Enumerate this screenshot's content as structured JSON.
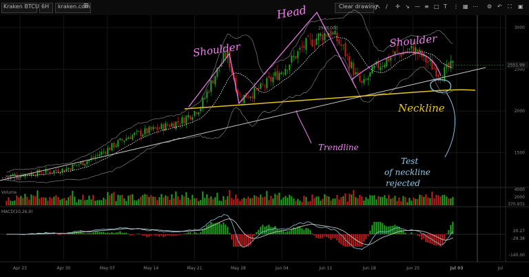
{
  "toolbar": {
    "symbol": "Kraken BTCUSD",
    "interval": "6H",
    "source": "kraken.com",
    "clear_drawing": "Clear drawing"
  },
  "colors": {
    "up": "#1fa61f",
    "down": "#c42020",
    "ma": "#ffffff",
    "bands": "#9c9c9c",
    "trendline": "#c8c8c8",
    "neckline": "#e6c61a",
    "pattern_marker": "#f07ff0",
    "note_marker": "#8ec7e6",
    "macd_line": "#8fc7df",
    "signal_line": "#d8d8d8"
  },
  "annotations": {
    "left_shoulder": "Shoulder",
    "head": "Head",
    "right_shoulder": "Shoulder",
    "neckline": "Neckline",
    "trendline": "Trendline",
    "test_line1": "Test",
    "test_line2": "of neckline",
    "test_line3": "rejected"
  },
  "chart_data": [
    {
      "type": "candlestick",
      "title": "",
      "x_tick_labels": [
        "Apr 23",
        "Apr 30",
        "May 07",
        "May 14",
        "May 21",
        "May 28",
        "Jun 04",
        "Jun 11",
        "Jun 18",
        "Jun 25",
        "Jul 03",
        "Jul"
      ],
      "y_tick_labels": [
        "1500",
        "2000",
        "2500",
        "3000"
      ],
      "ylim": [
        1100,
        3150
      ],
      "last_price": "2551.99",
      "high_label": "2988.000",
      "low_label": "1197.100",
      "series_approx_close": [
        {
          "date": "Apr 21",
          "price": 1220
        },
        {
          "date": "Apr 26",
          "price": 1260
        },
        {
          "date": "Apr 30",
          "price": 1300
        },
        {
          "date": "May 04",
          "price": 1420
        },
        {
          "date": "May 07",
          "price": 1560
        },
        {
          "date": "May 10",
          "price": 1700
        },
        {
          "date": "May 14",
          "price": 1780
        },
        {
          "date": "May 18",
          "price": 1880
        },
        {
          "date": "May 21",
          "price": 2050
        },
        {
          "date": "May 23",
          "price": 2400
        },
        {
          "date": "May 25",
          "price": 2700
        },
        {
          "date": "May 27",
          "price": 2150
        },
        {
          "date": "May 30",
          "price": 2250
        },
        {
          "date": "Jun 03",
          "price": 2520
        },
        {
          "date": "Jun 06",
          "price": 2780
        },
        {
          "date": "Jun 08",
          "price": 2880
        },
        {
          "date": "Jun 10",
          "price": 2960
        },
        {
          "date": "Jun 12",
          "price": 2750
        },
        {
          "date": "Jun 14",
          "price": 2420
        },
        {
          "date": "Jun 15",
          "price": 2300
        },
        {
          "date": "Jun 17",
          "price": 2520
        },
        {
          "date": "Jun 20",
          "price": 2680
        },
        {
          "date": "Jun 23",
          "price": 2740
        },
        {
          "date": "Jun 26",
          "price": 2520
        },
        {
          "date": "Jun 27",
          "price": 2430
        },
        {
          "date": "Jun 29",
          "price": 2550
        }
      ]
    },
    {
      "type": "bar",
      "title": "Volume",
      "y_tick_labels": [
        "4000",
        "2000"
      ],
      "last_value": "370.931"
    },
    {
      "type": "line",
      "title": "MACD(10,26,9)",
      "y_tick_labels": [
        "20.27",
        "-29.38",
        "-140.00"
      ]
    }
  ]
}
